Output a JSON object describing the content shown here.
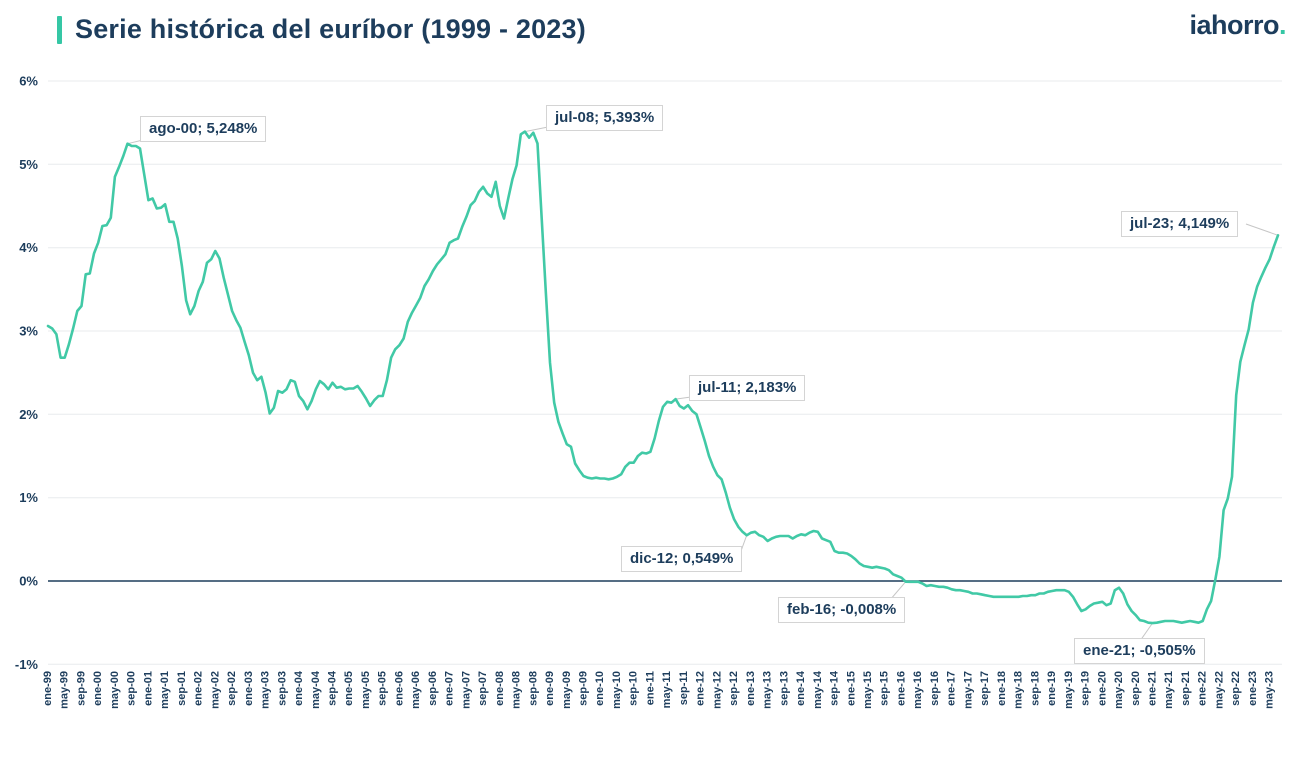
{
  "header": {
    "title": "Serie histórica del euríbor (1999 - 2023)",
    "logo_text": "iahorro",
    "logo_dot": "."
  },
  "colors": {
    "navy": "#1d3d5c",
    "teal": "#35c7a5",
    "line": "#41c9a6",
    "gridline": "#e8ebee",
    "zero_line": "#1d3d5c",
    "annotation_border": "#d4d4d4",
    "leader_line": "#c6c6c6",
    "background": "#ffffff"
  },
  "chart_data": {
    "type": "line",
    "title": "Serie histórica del euríbor (1999 - 2023)",
    "x_unit": "month",
    "x_range": [
      "ene-99",
      "jul-23"
    ],
    "ylim": [
      -1,
      6
    ],
    "grid": true,
    "legend_position": "none",
    "line_color": "#41c9a6",
    "y_tick_labels": [
      "6%",
      "5%",
      "4%",
      "3%",
      "2%",
      "1%",
      "0%",
      "-1%"
    ],
    "x_tick_step_months": 4,
    "x_tick_labels": [
      "ene-99",
      "may-99",
      "sep-99",
      "ene-00",
      "may-00",
      "sep-00",
      "ene-01",
      "may-01",
      "sep-01",
      "ene-02",
      "may-02",
      "sep-02",
      "ene-03",
      "may-03",
      "sep-03",
      "ene-04",
      "may-04",
      "sep-04",
      "ene-05",
      "may-05",
      "sep-05",
      "ene-06",
      "may-06",
      "sep-06",
      "ene-07",
      "may-07",
      "sep-07",
      "ene-08",
      "may-08",
      "sep-08",
      "ene-09",
      "may-09",
      "sep-09",
      "ene-10",
      "may-10",
      "sep-10",
      "ene-11",
      "may-11",
      "sep-11",
      "ene-12",
      "may-12",
      "sep-12",
      "ene-13",
      "may-13",
      "sep-13",
      "ene-14",
      "may-14",
      "sep-14",
      "ene-15",
      "may-15",
      "sep-15",
      "ene-16",
      "may-16",
      "sep-16",
      "ene-17",
      "may-17",
      "sep-17",
      "ene-18",
      "may-18",
      "sep-18",
      "ene-19",
      "may-19",
      "sep-19",
      "ene-20",
      "may-20",
      "sep-20",
      "ene-21",
      "may-21",
      "sep-21",
      "ene-22",
      "may-22",
      "sep-22",
      "ene-23",
      "may-23"
    ],
    "values": [
      3.06,
      3.03,
      2.96,
      2.68,
      2.68,
      2.84,
      3.03,
      3.24,
      3.3,
      3.68,
      3.69,
      3.93,
      4.06,
      4.26,
      4.27,
      4.36,
      4.85,
      4.97,
      5.1,
      5.248,
      5.22,
      5.22,
      5.19,
      4.88,
      4.57,
      4.59,
      4.47,
      4.48,
      4.52,
      4.31,
      4.31,
      4.11,
      3.78,
      3.37,
      3.2,
      3.3,
      3.48,
      3.59,
      3.82,
      3.86,
      3.96,
      3.87,
      3.64,
      3.44,
      3.24,
      3.13,
      3.04,
      2.87,
      2.71,
      2.5,
      2.41,
      2.45,
      2.26,
      2.01,
      2.08,
      2.28,
      2.26,
      2.3,
      2.41,
      2.39,
      2.22,
      2.16,
      2.06,
      2.16,
      2.3,
      2.4,
      2.36,
      2.3,
      2.38,
      2.32,
      2.33,
      2.3,
      2.31,
      2.31,
      2.34,
      2.27,
      2.19,
      2.1,
      2.17,
      2.22,
      2.22,
      2.41,
      2.68,
      2.78,
      2.83,
      2.91,
      3.11,
      3.22,
      3.31,
      3.4,
      3.54,
      3.62,
      3.72,
      3.8,
      3.86,
      3.92,
      4.06,
      4.09,
      4.11,
      4.25,
      4.37,
      4.51,
      4.56,
      4.67,
      4.73,
      4.65,
      4.61,
      4.79,
      4.5,
      4.35,
      4.59,
      4.82,
      4.99,
      5.36,
      5.393,
      5.32,
      5.38,
      5.25,
      4.35,
      3.45,
      2.62,
      2.14,
      1.91,
      1.77,
      1.64,
      1.61,
      1.41,
      1.33,
      1.26,
      1.24,
      1.23,
      1.24,
      1.23,
      1.23,
      1.22,
      1.23,
      1.25,
      1.28,
      1.37,
      1.42,
      1.42,
      1.5,
      1.54,
      1.53,
      1.55,
      1.71,
      1.92,
      2.09,
      2.15,
      2.14,
      2.183,
      2.1,
      2.07,
      2.11,
      2.04,
      2.0,
      1.84,
      1.68,
      1.5,
      1.37,
      1.27,
      1.22,
      1.06,
      0.88,
      0.74,
      0.65,
      0.59,
      0.549,
      0.58,
      0.59,
      0.55,
      0.53,
      0.48,
      0.51,
      0.53,
      0.54,
      0.54,
      0.54,
      0.51,
      0.54,
      0.56,
      0.55,
      0.58,
      0.6,
      0.59,
      0.51,
      0.49,
      0.47,
      0.36,
      0.34,
      0.34,
      0.33,
      0.3,
      0.26,
      0.21,
      0.18,
      0.17,
      0.16,
      0.17,
      0.16,
      0.15,
      0.13,
      0.08,
      0.06,
      0.04,
      -0.008,
      -0.01,
      -0.01,
      -0.01,
      -0.03,
      -0.06,
      -0.05,
      -0.06,
      -0.07,
      -0.07,
      -0.08,
      -0.1,
      -0.11,
      -0.11,
      -0.12,
      -0.13,
      -0.15,
      -0.15,
      -0.16,
      -0.17,
      -0.18,
      -0.19,
      -0.19,
      -0.19,
      -0.19,
      -0.19,
      -0.19,
      -0.19,
      -0.18,
      -0.18,
      -0.17,
      -0.17,
      -0.15,
      -0.15,
      -0.13,
      -0.12,
      -0.11,
      -0.11,
      -0.11,
      -0.13,
      -0.19,
      -0.28,
      -0.36,
      -0.34,
      -0.3,
      -0.27,
      -0.26,
      -0.25,
      -0.29,
      -0.27,
      -0.11,
      -0.08,
      -0.15,
      -0.28,
      -0.36,
      -0.41,
      -0.47,
      -0.48,
      -0.5,
      -0.505,
      -0.5,
      -0.49,
      -0.48,
      -0.48,
      -0.48,
      -0.49,
      -0.5,
      -0.49,
      -0.48,
      -0.49,
      -0.5,
      -0.48,
      -0.34,
      -0.24,
      0.01,
      0.29,
      0.85,
      0.99,
      1.25,
      2.23,
      2.63,
      2.83,
      3.02,
      3.34,
      3.53,
      3.65,
      3.76,
      3.86,
      4.01,
      4.149
    ],
    "annotations": [
      {
        "label": "ago-00; 5,248%",
        "month_index": 19,
        "value": 5.248
      },
      {
        "label": "jul-08; 5,393%",
        "month_index": 114,
        "value": 5.393
      },
      {
        "label": "jul-11; 2,183%",
        "month_index": 150,
        "value": 2.183
      },
      {
        "label": "dic-12; 0,549%",
        "month_index": 167,
        "value": 0.549
      },
      {
        "label": "feb-16; -0,008%",
        "month_index": 205,
        "value": -0.008
      },
      {
        "label": "ene-21; -0,505%",
        "month_index": 264,
        "value": -0.505
      },
      {
        "label": "jul-23; 4,149%",
        "month_index": 294,
        "value": 4.149
      }
    ]
  }
}
